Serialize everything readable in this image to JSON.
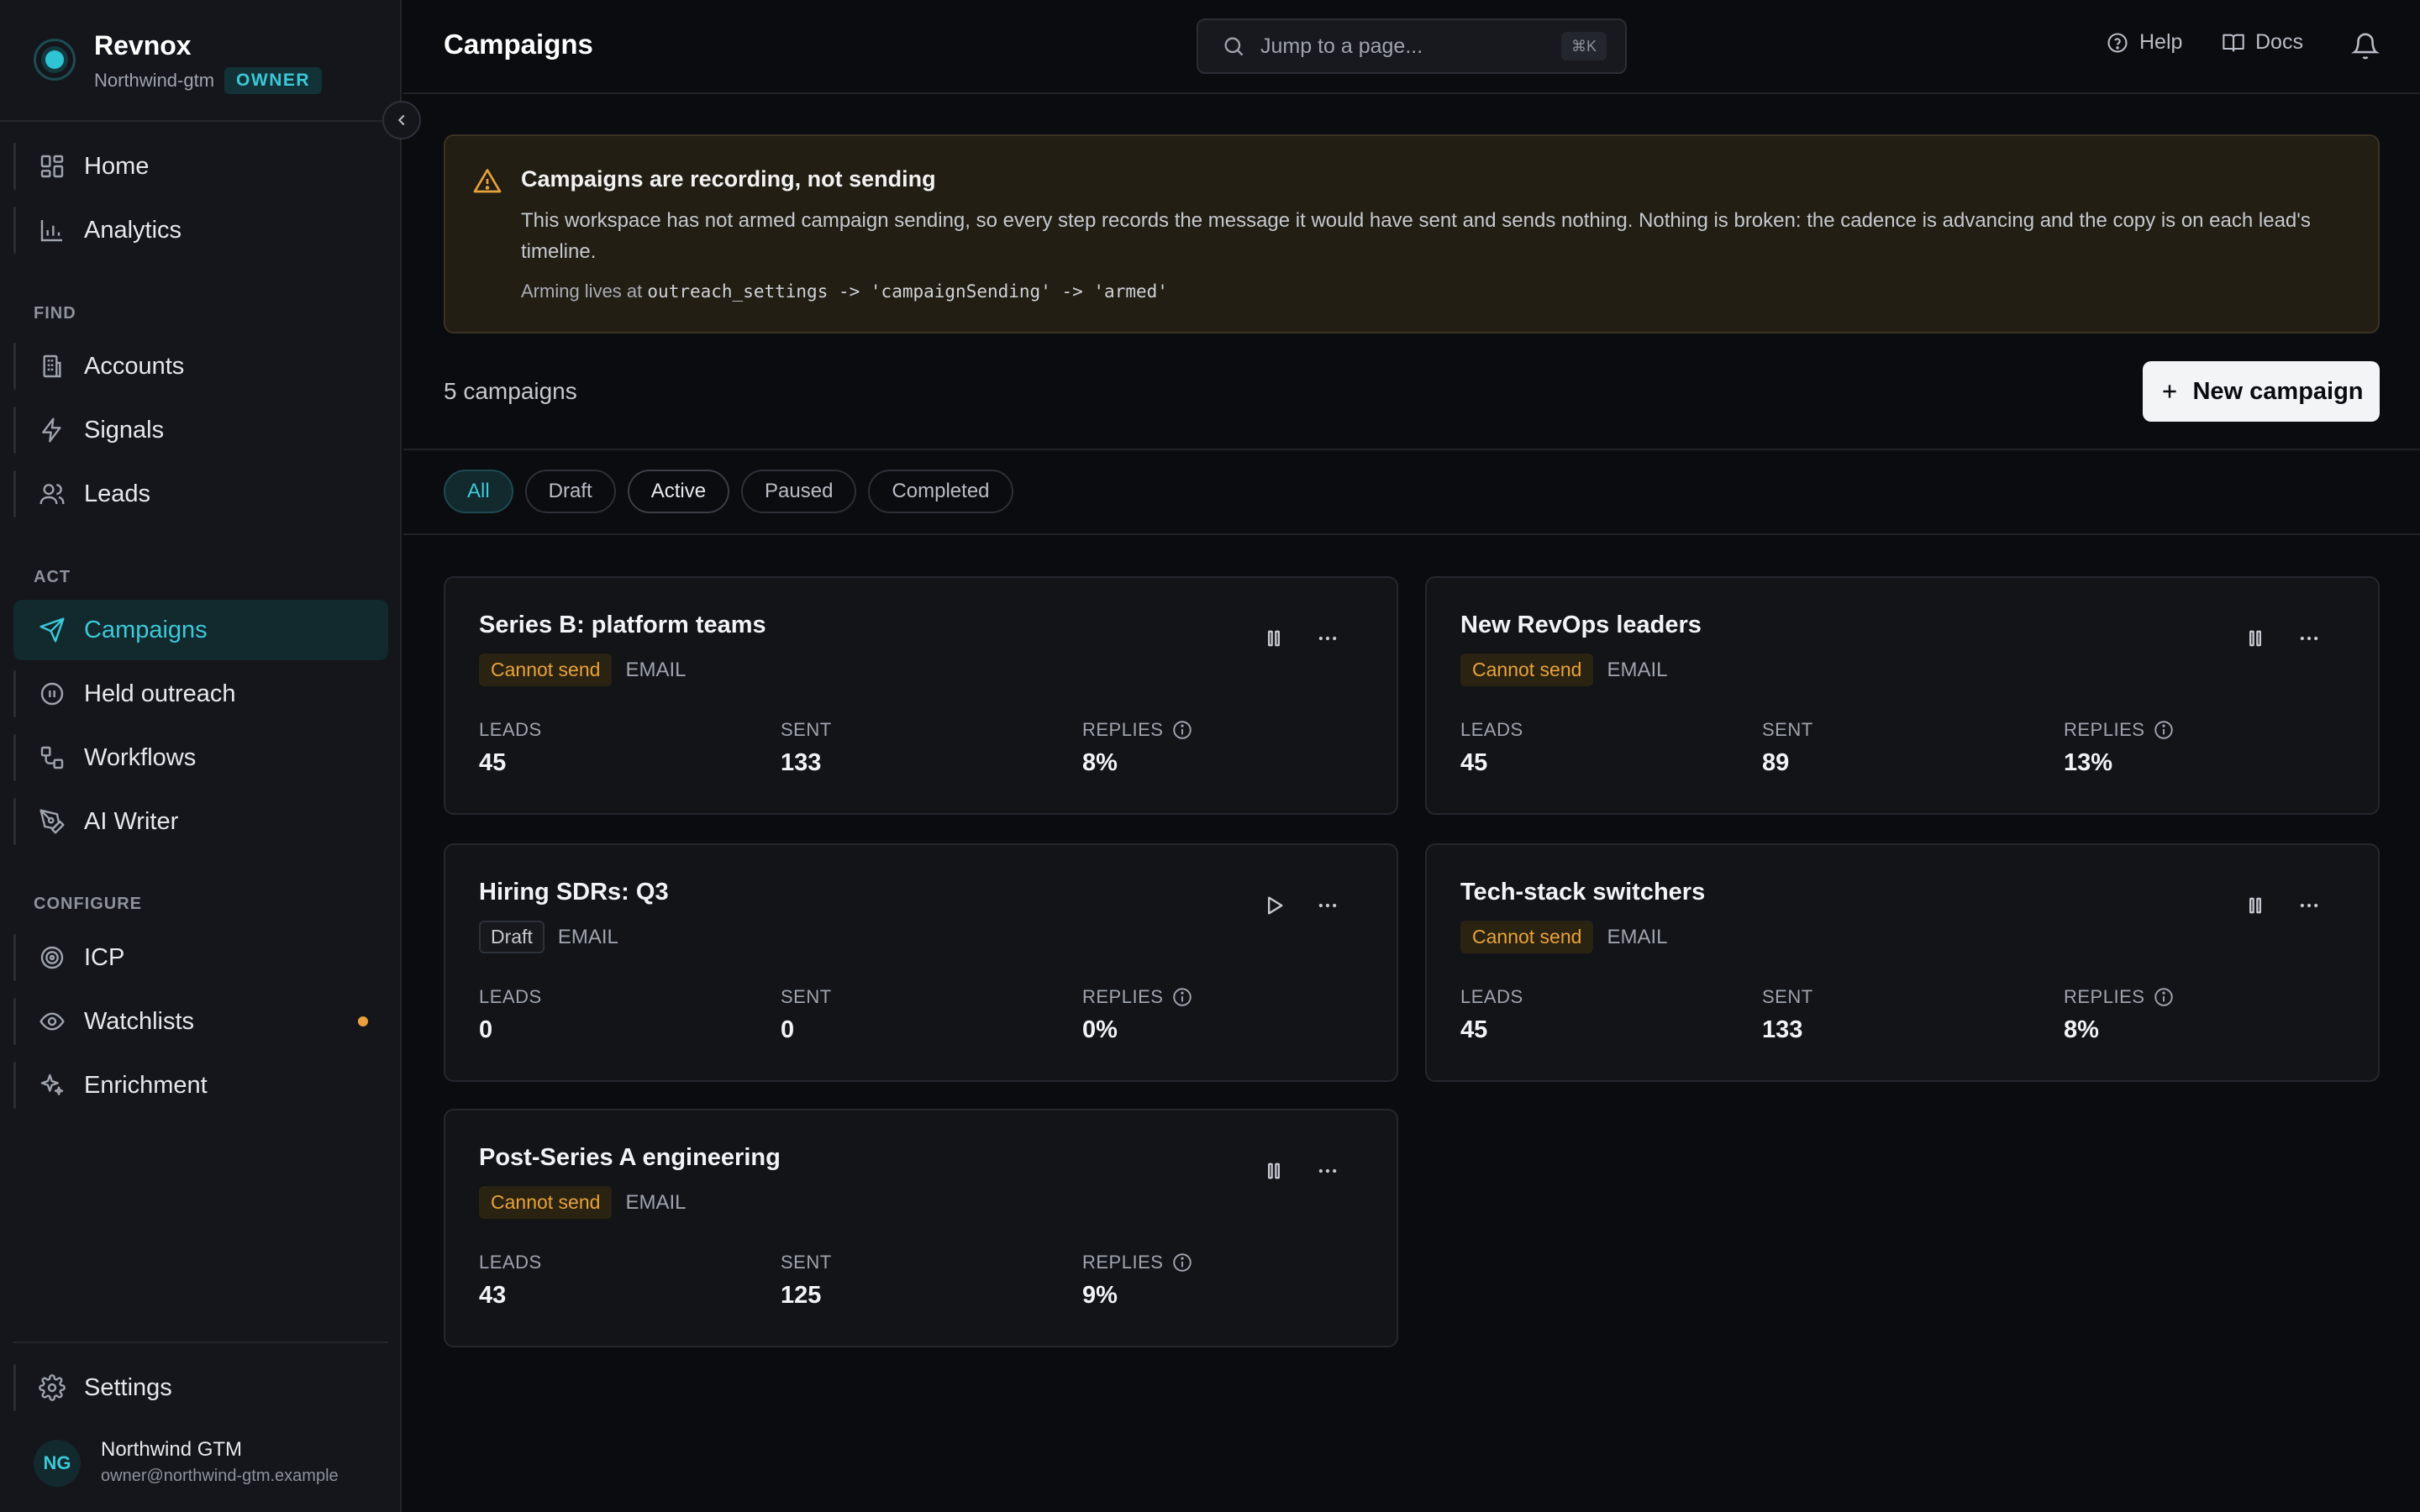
{
  "brand": {
    "name": "Revnox",
    "workspace": "Northwind-gtm",
    "role": "OWNER"
  },
  "sidebar": {
    "primary": [
      {
        "label": "Home",
        "icon": "grid-icon"
      },
      {
        "label": "Analytics",
        "icon": "bar-chart-icon"
      }
    ],
    "sections": {
      "find": "FIND",
      "act": "ACT",
      "configure": "CONFIGURE"
    },
    "find": [
      {
        "label": "Accounts",
        "icon": "building-icon"
      },
      {
        "label": "Signals",
        "icon": "bolt-icon"
      },
      {
        "label": "Leads",
        "icon": "users-icon"
      }
    ],
    "act": [
      {
        "label": "Campaigns",
        "icon": "send-icon",
        "active": true
      },
      {
        "label": "Held outreach",
        "icon": "pause-circle-icon"
      },
      {
        "label": "Workflows",
        "icon": "workflow-icon"
      },
      {
        "label": "AI Writer",
        "icon": "pen-icon"
      }
    ],
    "configure": [
      {
        "label": "ICP",
        "icon": "target-icon"
      },
      {
        "label": "Watchlists",
        "icon": "eye-icon",
        "dot_color": "#e9a23b"
      },
      {
        "label": "Enrichment",
        "icon": "sparkle-icon"
      }
    ],
    "settings": {
      "label": "Settings",
      "icon": "gear-icon"
    },
    "user": {
      "initials": "NG",
      "name": "Northwind GTM",
      "email": "owner@northwind-gtm.example"
    }
  },
  "header": {
    "title": "Campaigns",
    "search_placeholder": "Jump to a page...",
    "search_shortcut": "⌘K",
    "help_label": "Help",
    "docs_label": "Docs"
  },
  "banner": {
    "title": "Campaigns are recording, not sending",
    "body": "This workspace has not armed campaign sending, so every step records the message it would have sent and sends nothing. Nothing is broken: the cadence is advancing and the copy is on each lead's timeline.",
    "arming_prefix": "Arming lives at",
    "arming_path": "outreach_settings -> 'campaignSending' -> 'armed'"
  },
  "toolbar": {
    "count_label": "5 campaigns",
    "new_campaign_label": "New campaign"
  },
  "filters": [
    "All",
    "Draft",
    "Active",
    "Paused",
    "Completed"
  ],
  "stat_labels": {
    "leads": "LEADS",
    "sent": "SENT",
    "replies": "REPLIES"
  },
  "campaigns": [
    {
      "name": "Series B: platform teams",
      "status": "Cannot send",
      "status_kind": "warn",
      "channel": "EMAIL",
      "action": "pause",
      "leads": "45",
      "sent": "133",
      "replies": "8%"
    },
    {
      "name": "New RevOps leaders",
      "status": "Cannot send",
      "status_kind": "warn",
      "channel": "EMAIL",
      "action": "pause",
      "leads": "45",
      "sent": "89",
      "replies": "13%"
    },
    {
      "name": "Hiring SDRs: Q3",
      "status": "Draft",
      "status_kind": "draft",
      "channel": "EMAIL",
      "action": "play",
      "leads": "0",
      "sent": "0",
      "replies": "0%"
    },
    {
      "name": "Tech-stack switchers",
      "status": "Cannot send",
      "status_kind": "warn",
      "channel": "EMAIL",
      "action": "pause",
      "leads": "45",
      "sent": "133",
      "replies": "8%"
    },
    {
      "name": "Post-Series A engineering",
      "status": "Cannot send",
      "status_kind": "warn",
      "channel": "EMAIL",
      "action": "pause",
      "leads": "43",
      "sent": "125",
      "replies": "9%"
    }
  ],
  "colors": {
    "accent": "#3cc8d8",
    "warning": "#e9a23b",
    "background": "#0b0c0f"
  }
}
